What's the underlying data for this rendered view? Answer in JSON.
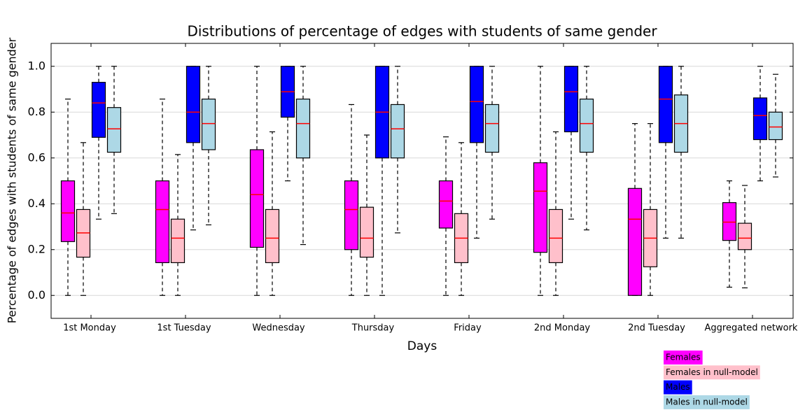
{
  "chart_data": {
    "type": "boxplot",
    "title": "Distributions of percentage of edges with students of same gender",
    "x_label": "Days",
    "y_label": "Percentage of edges with students of same gender",
    "categories": [
      "1st Monday",
      "1st Tuesday",
      "Wednesday",
      "Thursday",
      "Friday",
      "2nd Monday",
      "2nd Tuesday",
      "Aggregated network"
    ],
    "ylim": [
      -0.1,
      1.1
    ],
    "yticks": [
      {
        "value": 0,
        "label": "0.0"
      },
      0.2,
      0.4,
      0.6,
      0.8,
      {
        "value": 1,
        "label": "1.0"
      }
    ],
    "grid": true,
    "median_color": "#ff0000",
    "legend": "lower right",
    "series": [
      {
        "name": "Females",
        "color": "#ff00ff",
        "text_color": "#000000",
        "whislo": [
          0,
          0,
          0,
          0,
          0,
          0,
          0,
          0.036
        ],
        "q1": [
          0.235,
          0.143,
          0.21,
          0.2,
          0.294,
          0.188,
          0,
          0.24
        ],
        "med": [
          0.36,
          0.375,
          0.44,
          0.375,
          0.412,
          0.455,
          0.333,
          0.32
        ],
        "q3": [
          0.5,
          0.5,
          0.636,
          0.5,
          0.5,
          0.579,
          0.467,
          0.405
        ],
        "whishi": [
          0.857,
          0.857,
          1.0,
          0.833,
          0.692,
          1.0,
          0.75,
          0.5
        ]
      },
      {
        "name": "Females in null-model",
        "color": "#ffc0cb",
        "text_color": "#000000",
        "whislo": [
          0,
          0,
          0,
          0,
          0,
          0,
          0,
          0.033
        ],
        "q1": [
          0.167,
          0.143,
          0.143,
          0.167,
          0.143,
          0.143,
          0.125,
          0.2
        ],
        "med": [
          0.273,
          0.25,
          0.25,
          0.25,
          0.25,
          0.25,
          0.25,
          0.25
        ],
        "q3": [
          0.375,
          0.333,
          0.375,
          0.385,
          0.357,
          0.375,
          0.375,
          0.315
        ],
        "whishi": [
          0.667,
          0.615,
          0.714,
          0.7,
          0.667,
          0.714,
          0.75,
          0.48
        ]
      },
      {
        "name": "Males",
        "color": "#0000ff",
        "text_color": "#ffffff",
        "whislo": [
          0.333,
          0.286,
          0.5,
          0,
          0.25,
          0.333,
          0.25,
          0.5
        ],
        "q1": [
          0.69,
          0.667,
          0.778,
          0.6,
          0.667,
          0.714,
          0.667,
          0.68
        ],
        "med": [
          0.84,
          0.8,
          0.889,
          0.8,
          0.846,
          0.889,
          0.857,
          0.785
        ],
        "q3": [
          0.93,
          1.0,
          1.0,
          1.0,
          1.0,
          1.0,
          1.0,
          0.862
        ],
        "whishi": [
          1.0,
          1.0,
          1.0,
          1.0,
          1.0,
          1.0,
          1.0,
          1.0
        ]
      },
      {
        "name": "Males in null-model",
        "color": "#add8e6",
        "text_color": "#ffffff",
        "whislo": [
          0.357,
          0.308,
          0.222,
          0.273,
          0.333,
          0.286,
          0.25,
          0.517
        ],
        "q1": [
          0.625,
          0.636,
          0.6,
          0.6,
          0.625,
          0.625,
          0.625,
          0.68
        ],
        "med": [
          0.727,
          0.75,
          0.75,
          0.727,
          0.75,
          0.75,
          0.75,
          0.735
        ],
        "q3": [
          0.82,
          0.857,
          0.857,
          0.833,
          0.833,
          0.857,
          0.875,
          0.8
        ],
        "whishi": [
          1.0,
          1.0,
          1.0,
          1.0,
          1.0,
          1.0,
          1.0,
          0.965
        ]
      }
    ]
  }
}
